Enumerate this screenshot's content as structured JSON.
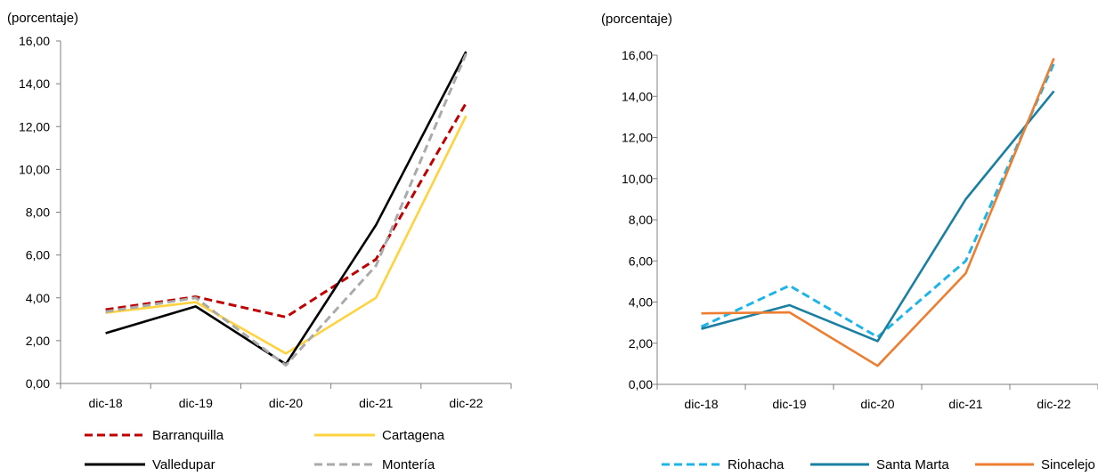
{
  "charts": [
    {
      "unit_label": "(porcentaje)",
      "chart_data": {
        "type": "line",
        "categories": [
          "dic-18",
          "dic-19",
          "dic-20",
          "dic-21",
          "dic-22"
        ],
        "ylim": [
          0,
          16
        ],
        "yticks": [
          "0,00",
          "2,00",
          "4,00",
          "6,00",
          "8,00",
          "10,00",
          "12,00",
          "14,00",
          "16,00"
        ],
        "grid": false,
        "legend_placement": "bottom",
        "series": [
          {
            "name": "Barranquilla",
            "values": [
              3.45,
              4.05,
              3.1,
              5.8,
              13.1
            ],
            "color": "#c00000",
            "dash": "dashed"
          },
          {
            "name": "Cartagena",
            "values": [
              3.3,
              3.8,
              1.4,
              4.0,
              12.5
            ],
            "color": "#ffd23f",
            "dash": "solid"
          },
          {
            "name": "Valledupar",
            "values": [
              2.35,
              3.6,
              0.9,
              7.4,
              15.5
            ],
            "color": "#000000",
            "dash": "solid"
          },
          {
            "name": "Montería",
            "values": [
              3.35,
              4.0,
              0.85,
              5.5,
              15.4
            ],
            "color": "#aaaaaa",
            "dash": "dashed"
          }
        ]
      }
    },
    {
      "unit_label": "(porcentaje)",
      "chart_data": {
        "type": "line",
        "categories": [
          "dic-18",
          "dic-19",
          "dic-20",
          "dic-21",
          "dic-22"
        ],
        "ylim": [
          0,
          16
        ],
        "yticks": [
          "0,00",
          "2,00",
          "4,00",
          "6,00",
          "8,00",
          "10,00",
          "12,00",
          "14,00",
          "16,00"
        ],
        "grid": false,
        "legend_placement": "bottom",
        "series": [
          {
            "name": "Riohacha",
            "values": [
              2.8,
              4.8,
              2.3,
              6.0,
              15.6
            ],
            "color": "#1fb4e8",
            "dash": "dashed"
          },
          {
            "name": "Santa Marta",
            "values": [
              2.7,
              3.85,
              2.1,
              9.0,
              14.25
            ],
            "color": "#1a7fa0",
            "dash": "solid"
          },
          {
            "name": "Sincelejo",
            "values": [
              3.45,
              3.5,
              0.9,
              5.4,
              15.85
            ],
            "color": "#ed7d31",
            "dash": "solid"
          }
        ]
      }
    }
  ]
}
